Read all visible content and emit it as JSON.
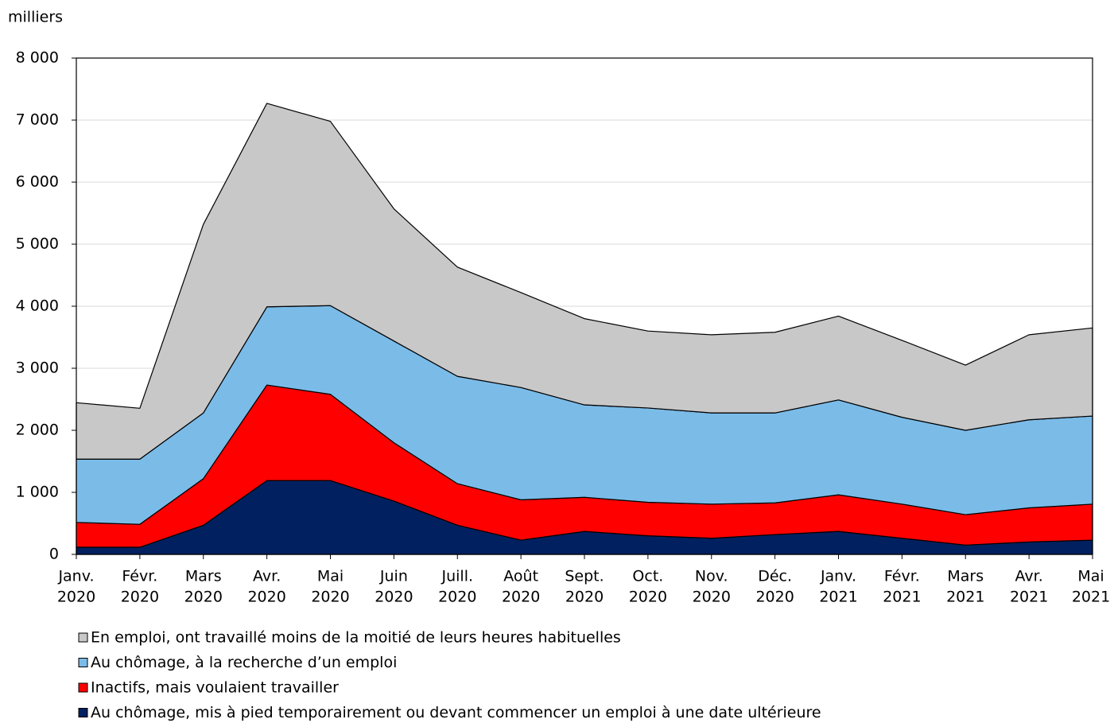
{
  "chart_data": {
    "type": "stacked_area",
    "y_axis_label": "milliers",
    "categories": [
      [
        "Janv.",
        "2020"
      ],
      [
        "Févr.",
        "2020"
      ],
      [
        "Mars",
        "2020"
      ],
      [
        "Avr.",
        "2020"
      ],
      [
        "Mai",
        "2020"
      ],
      [
        "Juin",
        "2020"
      ],
      [
        "Juill.",
        "2020"
      ],
      [
        "Août",
        "2020"
      ],
      [
        "Sept.",
        "2020"
      ],
      [
        "Oct.",
        "2020"
      ],
      [
        "Nov.",
        "2020"
      ],
      [
        "Déc.",
        "2020"
      ],
      [
        "Janv.",
        "2021"
      ],
      [
        "Févr.",
        "2021"
      ],
      [
        "Mars",
        "2021"
      ],
      [
        "Avr.",
        "2021"
      ],
      [
        "Mai",
        "2021"
      ]
    ],
    "series": [
      {
        "name": "Au chômage, mis à pied temporairement ou devant commencer un emploi à une date ultérieure",
        "color": "#002060",
        "values": [
          115,
          115,
          470,
          1190,
          1190,
          860,
          470,
          230,
          370,
          300,
          260,
          320,
          370,
          260,
          150,
          200,
          230
        ]
      },
      {
        "name": "Inactifs, mais voulaient travailler",
        "color": "#ff0000",
        "values": [
          400,
          370,
          750,
          1540,
          1390,
          940,
          670,
          650,
          550,
          540,
          550,
          510,
          590,
          550,
          490,
          550,
          580
        ]
      },
      {
        "name": "Au chômage, à la recherche d’un emploi",
        "color": "#7bbbe8",
        "values": [
          1020,
          1050,
          1060,
          1260,
          1430,
          1640,
          1730,
          1810,
          1490,
          1520,
          1470,
          1450,
          1530,
          1400,
          1360,
          1420,
          1420
        ]
      },
      {
        "name": "En emploi, ont travaillé moins de la moitié de leurs heures habituelles",
        "color": "#c8c8c8",
        "values": [
          910,
          820,
          3040,
          3280,
          2970,
          2130,
          1760,
          1530,
          1390,
          1240,
          1260,
          1300,
          1350,
          1240,
          1050,
          1370,
          1420
        ]
      }
    ],
    "ylim": [
      0,
      8000
    ],
    "yticks": [
      0,
      {
        "value": 1000,
        "label": "1 000"
      },
      {
        "value": 2000,
        "label": "2 000"
      },
      {
        "value": 3000,
        "label": "3 000"
      },
      {
        "value": 4000,
        "label": "4 000"
      },
      {
        "value": 5000,
        "label": "5 000"
      },
      {
        "value": 6000,
        "label": "6 000"
      },
      {
        "value": 7000,
        "label": "7 000"
      },
      {
        "value": 8000,
        "label": "8 000"
      }
    ],
    "grid": true
  }
}
